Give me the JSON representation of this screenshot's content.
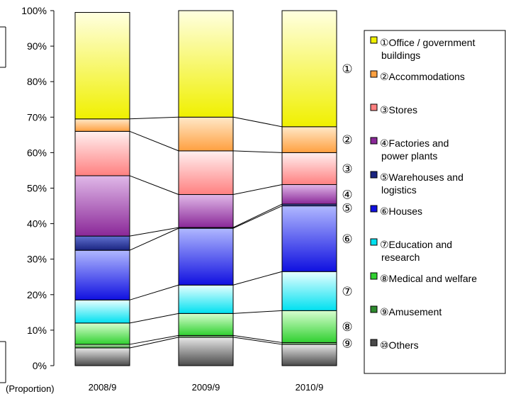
{
  "chart_data": {
    "type": "bar",
    "stacked": true,
    "normalized": true,
    "categories": [
      "2008/9",
      "2009/9",
      "2010/9"
    ],
    "x_axis_note": "(Proportion)",
    "y_axis": {
      "min": 0,
      "max": 100,
      "step": 10,
      "unit": "%"
    },
    "y_ticks": [
      "0%",
      "10%",
      "20%",
      "30%",
      "40%",
      "50%",
      "60%",
      "70%",
      "80%",
      "90%",
      "100%"
    ],
    "legend_position": "right",
    "series": [
      {
        "name": "⑩Others",
        "marker": "⑩",
        "values": [
          5,
          8,
          6
        ],
        "color_top": "#e8e8e8",
        "color_bottom": "#4a4a4a"
      },
      {
        "name": "⑨Amusement",
        "marker": "⑨",
        "values": [
          1,
          0.5,
          0.5
        ],
        "color_top": "#c8f0c0",
        "color_bottom": "#2e8b2e"
      },
      {
        "name": "⑧Medical and welfare",
        "marker": "⑧",
        "values": [
          6,
          6.2,
          9
        ],
        "color_top": "#d8ffd0",
        "color_bottom": "#30d030"
      },
      {
        "name": "⑦Education and research",
        "marker": "⑦",
        "values": [
          6.5,
          8,
          11
        ],
        "color_top": "#e8ffff",
        "color_bottom": "#00e0f0"
      },
      {
        "name": "⑥Houses",
        "marker": "⑥",
        "values": [
          14,
          16,
          18.5
        ],
        "color_top": "#b0b8ff",
        "color_bottom": "#1010e0"
      },
      {
        "name": "⑤Warehouses and logistics",
        "marker": "⑤",
        "values": [
          4,
          0.2,
          0.5
        ],
        "color_top": "#6070d0",
        "color_bottom": "#1a2480"
      },
      {
        "name": "④Factories and power plants",
        "marker": "④",
        "values": [
          17,
          9.3,
          5.5
        ],
        "color_top": "#e0b8e8",
        "color_bottom": "#8a2898"
      },
      {
        "name": "③Stores",
        "marker": "③",
        "values": [
          12.5,
          12.3,
          9
        ],
        "color_top": "#fff0f0",
        "color_bottom": "#ff8080"
      },
      {
        "name": "②Accommodations",
        "marker": "②",
        "values": [
          3.5,
          9.5,
          7.3
        ],
        "color_top": "#ffe8c8",
        "color_bottom": "#ffa040"
      },
      {
        "name": "①Office / government buildings",
        "marker": "①",
        "values": [
          30,
          30,
          32.7
        ],
        "color_top": "#ffffe0",
        "color_bottom": "#f0f000"
      }
    ],
    "bar_markers": [
      {
        "marker": "①",
        "series": "①Office / government buildings"
      },
      {
        "marker": "②",
        "series": "②Accommodations"
      },
      {
        "marker": "③",
        "series": "③Stores"
      },
      {
        "marker": "④",
        "series": "④Factories and power plants"
      },
      {
        "marker": "⑤",
        "series": "⑤Warehouses and logistics"
      },
      {
        "marker": "⑥",
        "series": "⑥Houses"
      },
      {
        "marker": "⑦",
        "series": "⑦Education and research"
      },
      {
        "marker": "⑧",
        "series": "⑧Medical and welfare"
      },
      {
        "marker": "⑨",
        "series": "⑨Amusement"
      }
    ],
    "legend": [
      {
        "lines": [
          "①Office / government",
          "buildings"
        ],
        "color": "#f0f000"
      },
      {
        "lines": [
          "②Accommodations"
        ],
        "color": "#ffa040"
      },
      {
        "lines": [
          "③Stores"
        ],
        "color": "#ff8080"
      },
      {
        "lines": [
          "④Factories and",
          "power plants"
        ],
        "color": "#8a2898"
      },
      {
        "lines": [
          "⑤Warehouses and",
          "logistics"
        ],
        "color": "#1a2480"
      },
      {
        "lines": [
          "⑥Houses"
        ],
        "color": "#1010e0"
      },
      {
        "lines": [
          "⑦Education and",
          "research"
        ],
        "color": "#00e0f0"
      },
      {
        "lines": [
          "⑧Medical and welfare"
        ],
        "color": "#30d030"
      },
      {
        "lines": [
          "⑨Amusement"
        ],
        "color": "#2e8b2e"
      },
      {
        "lines": [
          "⑩Others"
        ],
        "color": "#4a4a4a"
      }
    ]
  }
}
